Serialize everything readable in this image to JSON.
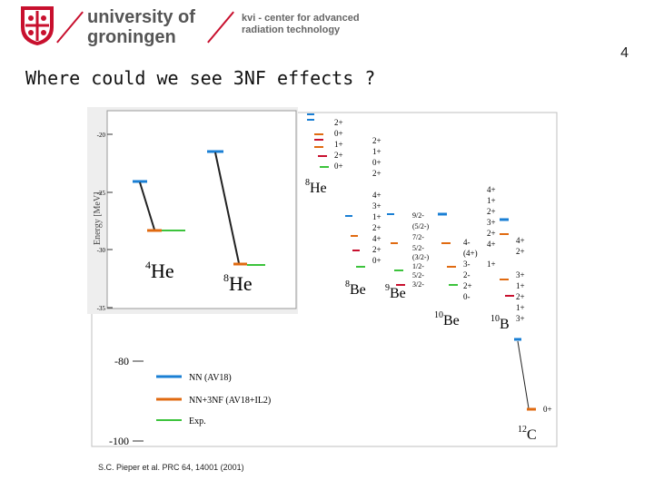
{
  "header": {
    "university_line1": "university of",
    "university_line2": "groningen",
    "institute_line1": "kvi - center for advanced",
    "institute_line2": "radiation technology"
  },
  "page_number": "4",
  "slide_title": "Where could we see 3NF effects ?",
  "citation": "S.C. Pieper et al. PRC 64, 14001 (2001)",
  "colors": {
    "brand_red": "#c8102e",
    "nn": "#1a7fd4",
    "nn3nf": "#e06a10",
    "exp": "#3cc33c"
  },
  "inset": {
    "ylabel": "Energy [MeV]",
    "ticks": [
      "-20",
      "-25",
      "-30",
      "-35"
    ],
    "nuclei": [
      {
        "mass": "4",
        "symbol": "He"
      },
      {
        "mass": "8",
        "symbol": "He"
      }
    ]
  },
  "main_plot": {
    "ticks": [
      "-80",
      "-100"
    ],
    "nuclei": [
      {
        "mass": "8",
        "symbol": "He"
      },
      {
        "mass": "8",
        "symbol": "Be"
      },
      {
        "mass": "9",
        "symbol": "Be"
      },
      {
        "mass": "10",
        "symbol": "Be"
      },
      {
        "mass": "10",
        "symbol": "B"
      },
      {
        "mass": "12",
        "symbol": "C"
      }
    ],
    "he8_spins": [
      "2+",
      "0+",
      "1+",
      "2+",
      "0+"
    ],
    "be8_spins": [
      "2+",
      "1+",
      "0+",
      "2+",
      "4+",
      "3+",
      "1+",
      "2+",
      "4+",
      "2+",
      "0+"
    ],
    "be9_spins": [
      "9/2-",
      "(5/2-)",
      "7/2-",
      "5/2-",
      "(3/2-)",
      "1/2-",
      "5/2-",
      "3/2-"
    ],
    "be10_spins": [
      "4-",
      "(4+)",
      "3-",
      "2-",
      "2+",
      "0-"
    ],
    "b10_spins_left": [
      "4+",
      "1+",
      "2+",
      "3+",
      "2+",
      "4+",
      "1+"
    ],
    "b10_spins_right": [
      "4+",
      "2+",
      "3+",
      "1+",
      "2+",
      "1+",
      "3+"
    ],
    "c12_spins": [
      "0+"
    ]
  },
  "legend": [
    {
      "label": "NN (AV18)"
    },
    {
      "label": "NN+3NF (AV18+IL2)"
    },
    {
      "label": "Exp."
    }
  ]
}
